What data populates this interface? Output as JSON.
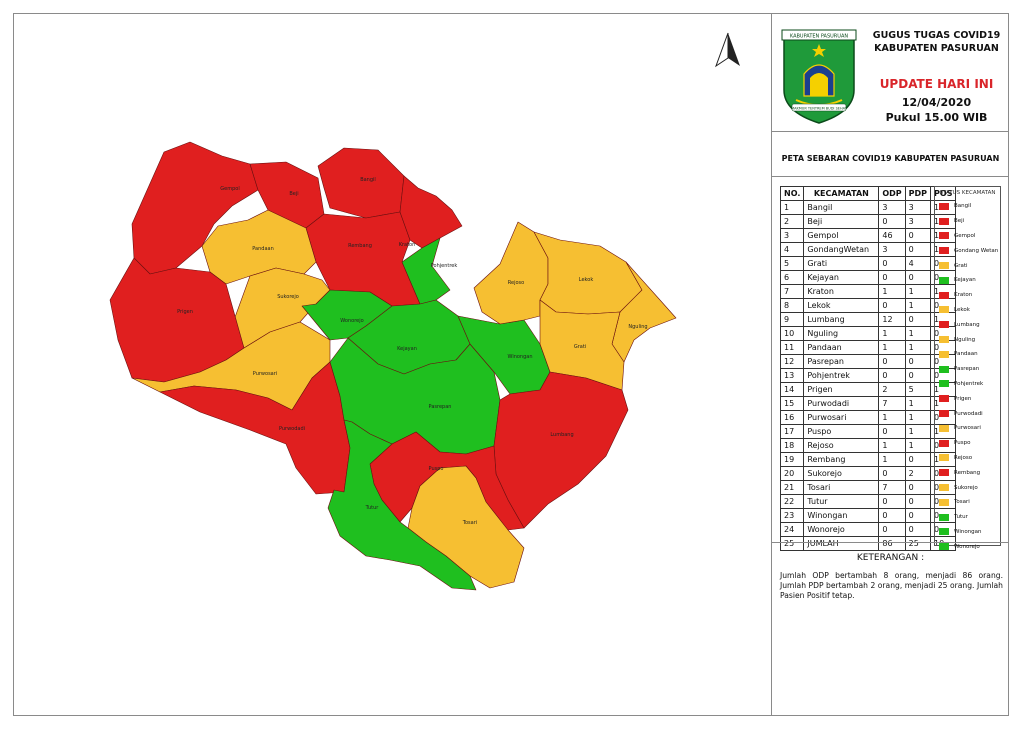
{
  "header": {
    "title_line1": "GUGUS TUGAS COVID19",
    "title_line2": "KABUPATEN PASURUAN",
    "update_label": "UPDATE HARI INI",
    "date": "12/04/2020",
    "time": "Pukul 15.00 WIB",
    "logo_text_top": "KABUPATEN PASURUAN",
    "logo_text_bottom": "MAKMUR TENTREM BUDI SEHAT"
  },
  "map_title": "PETA SEBARAN COVID19 KABUPATEN PASURUAN",
  "colors": {
    "red": "#e01f1f",
    "yellow": "#f6bf32",
    "green": "#1fbf1f"
  },
  "table": {
    "headers": [
      "NO.",
      "KECAMATAN",
      "ODP",
      "PDP",
      "POS"
    ],
    "rows": [
      [
        "1",
        "Bangil",
        "3",
        "3",
        "1"
      ],
      [
        "2",
        "Beji",
        "0",
        "3",
        "1"
      ],
      [
        "3",
        "Gempol",
        "46",
        "0",
        "1"
      ],
      [
        "4",
        "GondangWetan",
        "3",
        "0",
        "1"
      ],
      [
        "5",
        "Grati",
        "0",
        "4",
        "0"
      ],
      [
        "6",
        "Kejayan",
        "0",
        "0",
        "0"
      ],
      [
        "7",
        "Kraton",
        "1",
        "1",
        "1"
      ],
      [
        "8",
        "Lekok",
        "0",
        "1",
        "0"
      ],
      [
        "9",
        "Lumbang",
        "12",
        "0",
        "1"
      ],
      [
        "10",
        "Nguling",
        "1",
        "1",
        "0"
      ],
      [
        "11",
        "Pandaan",
        "1",
        "1",
        "0"
      ],
      [
        "12",
        "Pasrepan",
        "0",
        "0",
        "0"
      ],
      [
        "13",
        "Pohjentrek",
        "0",
        "0",
        "0"
      ],
      [
        "14",
        "Prigen",
        "2",
        "5",
        "1"
      ],
      [
        "15",
        "Purwodadi",
        "7",
        "1",
        "1"
      ],
      [
        "16",
        "Purwosari",
        "1",
        "1",
        "0"
      ],
      [
        "17",
        "Puspo",
        "0",
        "1",
        "1"
      ],
      [
        "18",
        "Rejoso",
        "1",
        "1",
        "0"
      ],
      [
        "19",
        "Rembang",
        "1",
        "0",
        "1"
      ],
      [
        "20",
        "Sukorejo",
        "0",
        "2",
        "0"
      ],
      [
        "21",
        "Tosari",
        "7",
        "0",
        "0"
      ],
      [
        "22",
        "Tutur",
        "0",
        "0",
        "0"
      ],
      [
        "23",
        "Winongan",
        "0",
        "0",
        "0"
      ],
      [
        "24",
        "Wonorejo",
        "0",
        "0",
        "0"
      ],
      [
        "25",
        "JUMLAH",
        "86",
        "25",
        "10"
      ]
    ]
  },
  "legend": {
    "title": "STATUS KECAMATAN",
    "items": [
      {
        "label": "Bangil",
        "status": "red"
      },
      {
        "label": "Beji",
        "status": "red"
      },
      {
        "label": "Gempol",
        "status": "red"
      },
      {
        "label": "Gondang Wetan",
        "status": "red"
      },
      {
        "label": "Grati",
        "status": "yellow"
      },
      {
        "label": "Kejayan",
        "status": "green"
      },
      {
        "label": "Kraton",
        "status": "red"
      },
      {
        "label": "Lekok",
        "status": "yellow"
      },
      {
        "label": "Lumbang",
        "status": "red"
      },
      {
        "label": "Nguling",
        "status": "yellow"
      },
      {
        "label": "Pandaan",
        "status": "yellow"
      },
      {
        "label": "Pasrepan",
        "status": "green"
      },
      {
        "label": "Pohjentrek",
        "status": "green"
      },
      {
        "label": "Prigen",
        "status": "red"
      },
      {
        "label": "Purwodadi",
        "status": "red"
      },
      {
        "label": "Purwosari",
        "status": "yellow"
      },
      {
        "label": "Puspo",
        "status": "red"
      },
      {
        "label": "Rejoso",
        "status": "yellow"
      },
      {
        "label": "Rembang",
        "status": "red"
      },
      {
        "label": "Sukorejo",
        "status": "yellow"
      },
      {
        "label": "Tosari",
        "status": "yellow"
      },
      {
        "label": "Tutur",
        "status": "green"
      },
      {
        "label": "Winongan",
        "status": "green"
      },
      {
        "label": "Wonorejo",
        "status": "green"
      }
    ]
  },
  "notes": {
    "title": "KETERANGAN :",
    "text": "Jumlah ODP bertambah 8 orang, menjadi 86 orang. Jumlah PDP bertambah 2 orang, menjadi 25 orang. Jumlah Pasien Positif tetap."
  },
  "map": {
    "regions": [
      {
        "name": "Gempol",
        "status": "red"
      },
      {
        "name": "Beji",
        "status": "red"
      },
      {
        "name": "Bangil",
        "status": "red"
      },
      {
        "name": "Rembang",
        "status": "red"
      },
      {
        "name": "Kraton",
        "status": "red"
      },
      {
        "name": "Pohjentrek",
        "status": "green"
      },
      {
        "name": "Pandaan",
        "status": "yellow"
      },
      {
        "name": "Sukorejo",
        "status": "yellow"
      },
      {
        "name": "Prigen",
        "status": "red"
      },
      {
        "name": "Purwosari",
        "status": "yellow"
      },
      {
        "name": "Purwodadi",
        "status": "red"
      },
      {
        "name": "Wonorejo",
        "status": "green"
      },
      {
        "name": "Kejayan",
        "status": "green"
      },
      {
        "name": "Pasrepan",
        "status": "green"
      },
      {
        "name": "Winongan",
        "status": "green"
      },
      {
        "name": "Rejoso",
        "status": "yellow"
      },
      {
        "name": "Lekok",
        "status": "yellow"
      },
      {
        "name": "Nguling",
        "status": "yellow"
      },
      {
        "name": "Grati",
        "status": "yellow"
      },
      {
        "name": "Lumbang",
        "status": "red"
      },
      {
        "name": "Puspo",
        "status": "red"
      },
      {
        "name": "Tosari",
        "status": "yellow"
      },
      {
        "name": "Tutur",
        "status": "green"
      }
    ]
  }
}
